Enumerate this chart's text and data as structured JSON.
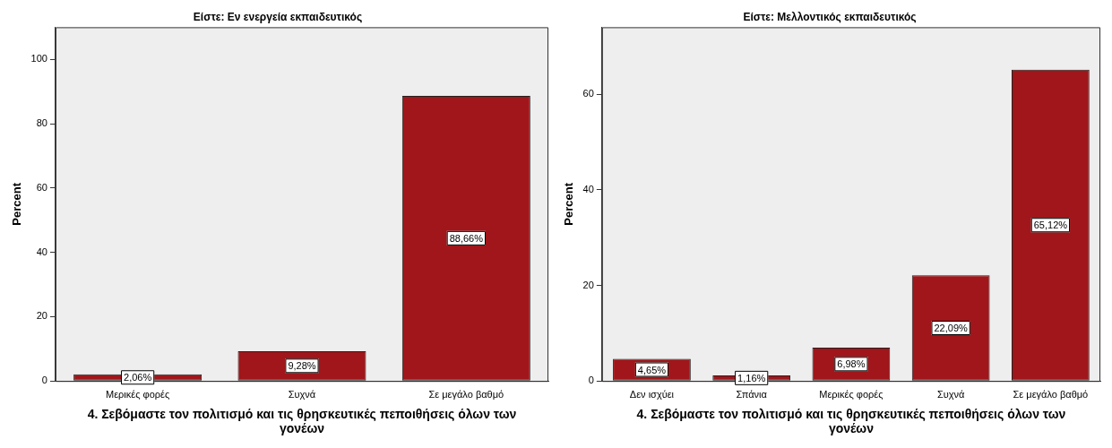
{
  "chart_data": [
    {
      "type": "bar",
      "title": "Είστε: Εν ενεργεία εκπαιδευτικός",
      "xlabel": "4. Σεβόμαστε τον πολιτισμό και τις θρησκευτικές πεποιθήσεις όλων των γονέων",
      "ylabel": "Percent",
      "categories": [
        "Μερικές φορές",
        "Συχνά",
        "Σε μεγάλο βαθμό"
      ],
      "values": [
        2.06,
        9.28,
        88.66
      ],
      "value_labels": [
        "2,06%",
        "9,28%",
        "88,66%"
      ],
      "color": "#a0161a",
      "ylim": [
        0,
        110
      ],
      "yticks": [
        0,
        20,
        40,
        60,
        80,
        100
      ],
      "grid": false,
      "legend": false
    },
    {
      "type": "bar",
      "title": "Είστε: Μελλοντικός εκπαιδευτικός",
      "xlabel": "4. Σεβόμαστε τον πολιτισμό και τις θρησκευτικές πεποιθήσεις όλων των γονέων",
      "ylabel": "Percent",
      "categories": [
        "Δεν ισχύει",
        "Σπάνια",
        "Μερικές φορές",
        "Συχνά",
        "Σε μεγάλο βαθμό"
      ],
      "values": [
        4.65,
        1.16,
        6.98,
        22.09,
        65.12
      ],
      "value_labels": [
        "4,65%",
        "1,16%",
        "6,98%",
        "22,09%",
        "65,12%"
      ],
      "color": "#a0161a",
      "ylim": [
        0,
        74
      ],
      "yticks": [
        0,
        20,
        40,
        60
      ],
      "grid": false,
      "legend": false
    }
  ]
}
